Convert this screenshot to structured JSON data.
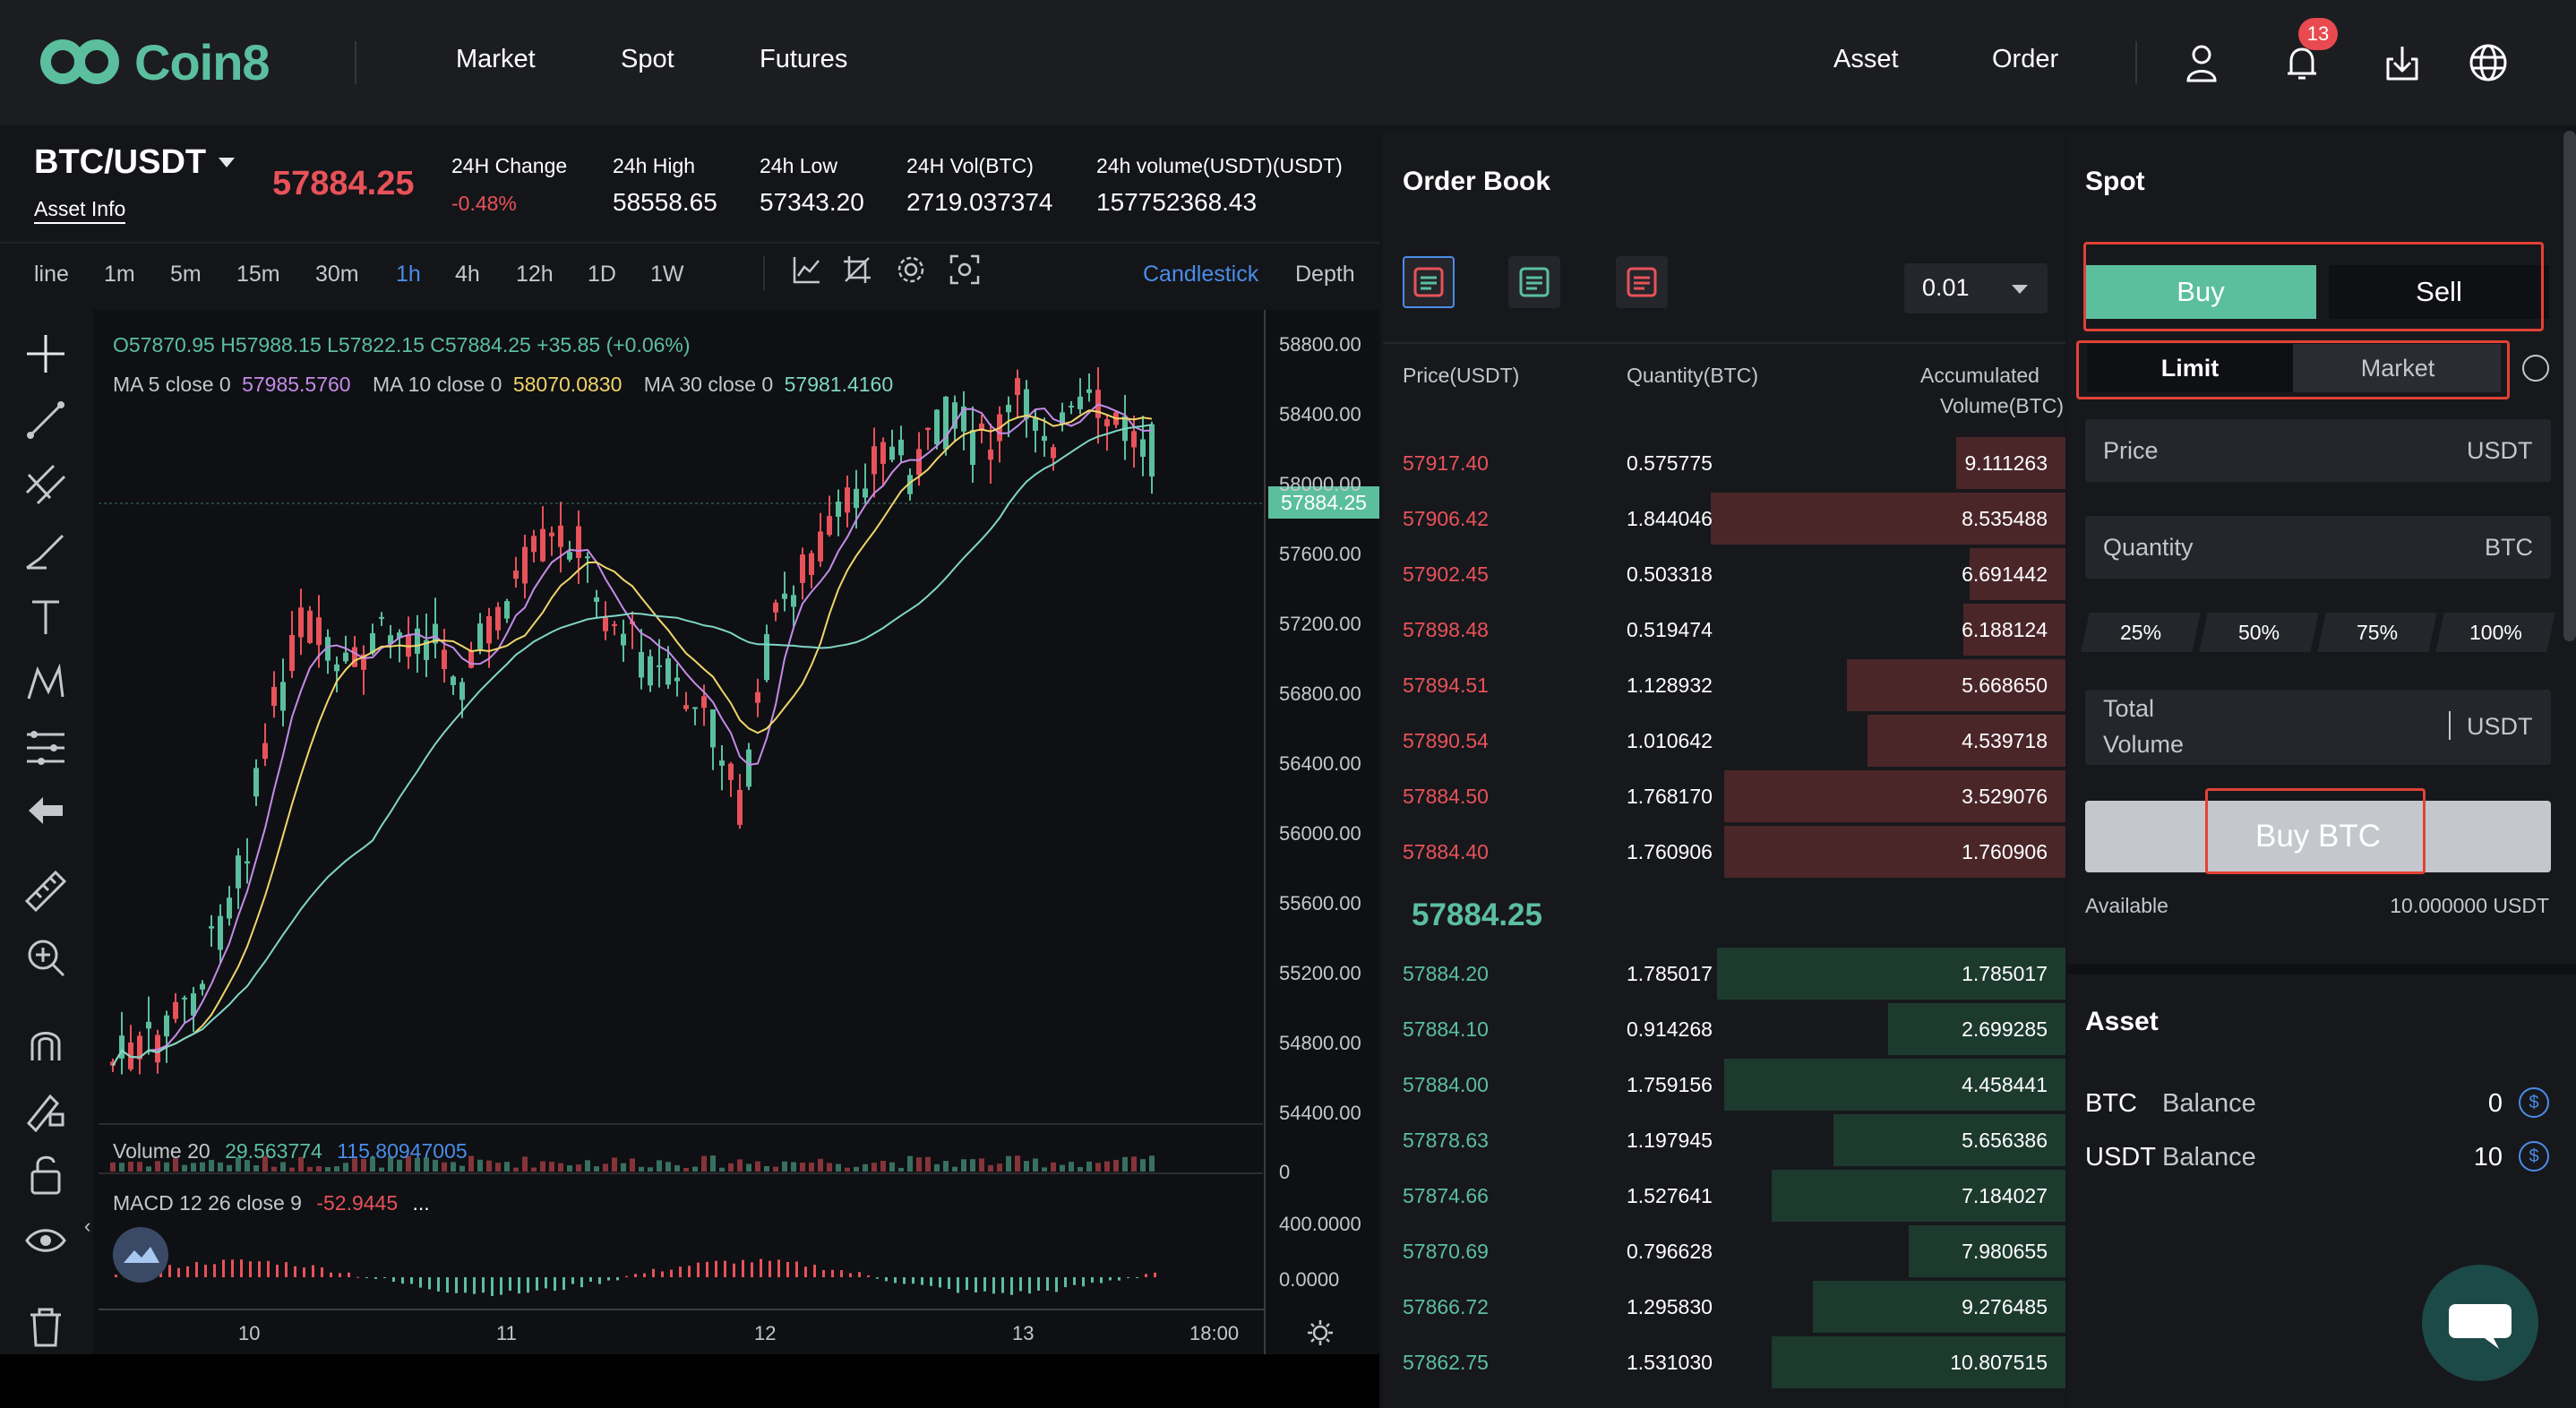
{
  "header": {
    "logo_text": "Coin8",
    "nav": [
      "Market",
      "Spot",
      "Futures"
    ],
    "right_nav": [
      "Asset",
      "Order"
    ],
    "notification_count": "13",
    "icons": [
      "user-icon",
      "bell-icon",
      "download-icon",
      "globe-icon"
    ]
  },
  "ticker": {
    "pair": "BTC/USDT",
    "asset_info": "Asset Info",
    "last_price": "57884.25",
    "stats": [
      {
        "label": "24H Change",
        "value": "-0.48%"
      },
      {
        "label": "24h High",
        "value": "58558.65"
      },
      {
        "label": "24h Low",
        "value": "57343.20"
      },
      {
        "label": "24H Vol(BTC)",
        "value": "2719.037374"
      },
      {
        "label": "24h volume(USDT)(USDT)",
        "value": "157752368.43"
      }
    ]
  },
  "toolbar": {
    "timeframes": [
      "line",
      "1m",
      "5m",
      "15m",
      "30m",
      "1h",
      "4h",
      "12h",
      "1D",
      "1W"
    ],
    "active_timeframe": "1h",
    "modes": [
      "Candlestick",
      "Depth"
    ],
    "active_mode": "Candlestick"
  },
  "chart": {
    "ohlc": "O57870.95 H57988.15 L57822.15 C57884.25 +35.85 (+0.06%)",
    "ma": [
      {
        "label": "MA 5 close 0",
        "value": "57985.5760",
        "color": "#c48be8"
      },
      {
        "label": "MA 10 close 0",
        "value": "58070.0830",
        "color": "#f0d56a"
      },
      {
        "label": "MA 30 close 0",
        "value": "57981.4160",
        "color": "#7fd6c6"
      }
    ],
    "price_tag": "57884.25",
    "y_axis": [
      "58800.00",
      "58400.00",
      "58000.00",
      "57600.00",
      "57200.00",
      "56800.00",
      "56400.00",
      "56000.00",
      "55600.00",
      "55200.00",
      "54800.00",
      "54400.00"
    ],
    "volume": {
      "label": "Volume 20",
      "v1": "29.563774",
      "v2": "115.80947005",
      "axis": "0"
    },
    "macd": {
      "label": "MACD 12 26 close 9",
      "value": "-52.9445",
      "ellipsis": "...",
      "axis": [
        "400.0000",
        "0.0000"
      ]
    },
    "x_axis": [
      "10",
      "11",
      "12",
      "13",
      "18:00"
    ]
  },
  "orderbook": {
    "title": "Order Book",
    "step": "0.01",
    "headers": [
      "Price(USDT)",
      "Quantity(BTC)",
      "Accumulated",
      "Volume(BTC)"
    ],
    "asks": [
      {
        "price": "57917.40",
        "qty": "0.575775",
        "acc": "9.111263",
        "depth": 0.16
      },
      {
        "price": "57906.42",
        "qty": "1.844046",
        "acc": "8.535488",
        "depth": 0.52
      },
      {
        "price": "57902.45",
        "qty": "0.503318",
        "acc": "6.691442",
        "depth": 0.14
      },
      {
        "price": "57898.48",
        "qty": "0.519474",
        "acc": "6.188124",
        "depth": 0.15
      },
      {
        "price": "57894.51",
        "qty": "1.128932",
        "acc": "5.668650",
        "depth": 0.32
      },
      {
        "price": "57890.54",
        "qty": "1.010642",
        "acc": "4.539718",
        "depth": 0.29
      },
      {
        "price": "57884.50",
        "qty": "1.768170",
        "acc": "3.529076",
        "depth": 0.5
      },
      {
        "price": "57884.40",
        "qty": "1.760906",
        "acc": "1.760906",
        "depth": 0.5
      }
    ],
    "mid_price": "57884.25",
    "bids": [
      {
        "price": "57884.20",
        "qty": "1.785017",
        "acc": "1.785017",
        "depth": 0.51
      },
      {
        "price": "57884.10",
        "qty": "0.914268",
        "acc": "2.699285",
        "depth": 0.26
      },
      {
        "price": "57884.00",
        "qty": "1.759156",
        "acc": "4.458441",
        "depth": 0.5
      },
      {
        "price": "57878.63",
        "qty": "1.197945",
        "acc": "5.656386",
        "depth": 0.34
      },
      {
        "price": "57874.66",
        "qty": "1.527641",
        "acc": "7.184027",
        "depth": 0.43
      },
      {
        "price": "57870.69",
        "qty": "0.796628",
        "acc": "7.980655",
        "depth": 0.23
      },
      {
        "price": "57866.72",
        "qty": "1.295830",
        "acc": "9.276485",
        "depth": 0.37
      },
      {
        "price": "57862.75",
        "qty": "1.531030",
        "acc": "10.807515",
        "depth": 0.43
      }
    ]
  },
  "trade": {
    "title": "Spot",
    "buy_tab": "Buy",
    "sell_tab": "Sell",
    "limit_tab": "Limit",
    "market_tab": "Market",
    "price_label": "Price",
    "price_unit": "USDT",
    "qty_label": "Quantity",
    "qty_unit": "BTC",
    "pcts": [
      "25%",
      "50%",
      "75%",
      "100%"
    ],
    "total_label_1": "Total",
    "total_label_2": "Volume",
    "total_unit": "USDT",
    "buy_button": "Buy BTC",
    "available_label": "Available",
    "available_value": "10.000000 USDT"
  },
  "asset": {
    "title": "Asset",
    "rows": [
      {
        "coin": "BTC",
        "word": "Balance",
        "value": "0"
      },
      {
        "coin": "USDT",
        "word": "Balance",
        "value": "10"
      }
    ]
  },
  "colors": {
    "up": "#5bbf9e",
    "down": "#e8525a",
    "accent": "#4a8de8",
    "highlight": "#e24236"
  }
}
